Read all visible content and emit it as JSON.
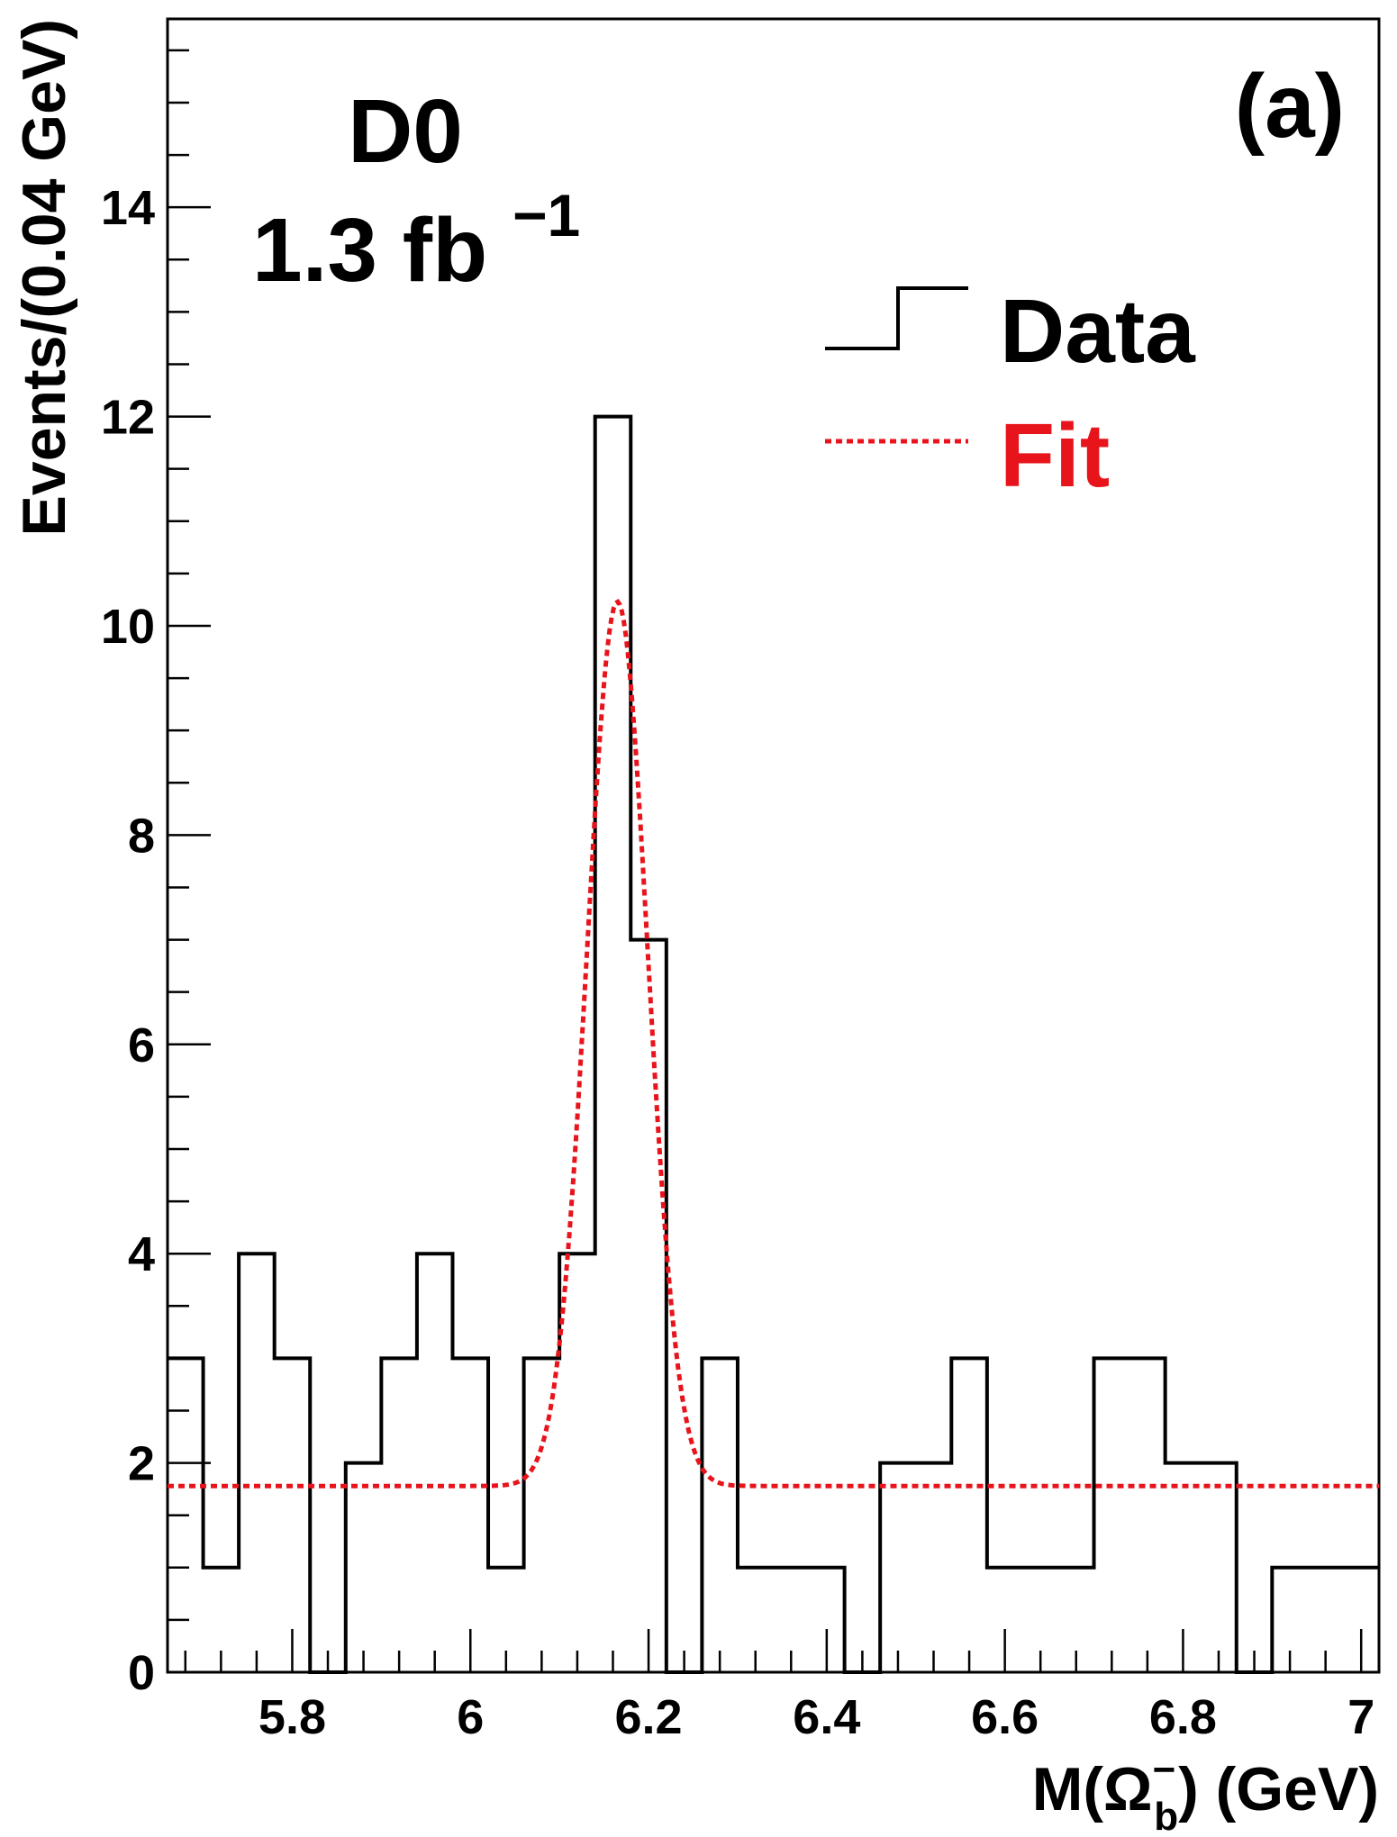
{
  "chart_data": {
    "type": "histogram",
    "title": "",
    "panel_label": "(a)",
    "experiment": "D0",
    "luminosity": "1.3 fb",
    "luminosity_exponent": "−1",
    "xlabel": {
      "prefix": "M(",
      "symbol": "Ω",
      "superscript": "−",
      "subscript": "b",
      "suffix": ") (GeV)"
    },
    "ylabel": "Events/(0.04 GeV)",
    "xlim": [
      5.66,
      7.02
    ],
    "ylim": [
      0,
      15.8
    ],
    "bin_width": 0.04,
    "x_ticks": [
      5.8,
      6.0,
      6.2,
      6.4,
      6.6,
      6.8,
      7.0
    ],
    "x_tick_labels": [
      "5.8",
      "6",
      "6.2",
      "6.4",
      "6.6",
      "6.8",
      "7"
    ],
    "y_ticks": [
      0,
      2,
      4,
      6,
      8,
      10,
      12,
      14
    ],
    "y_tick_labels": [
      "0",
      "2",
      "4",
      "6",
      "8",
      "10",
      "12",
      "14"
    ],
    "bin_edges": [
      5.66,
      5.7,
      5.74,
      5.78,
      5.82,
      5.86,
      5.9,
      5.94,
      5.98,
      6.02,
      6.06,
      6.1,
      6.14,
      6.18,
      6.22,
      6.26,
      6.3,
      6.34,
      6.38,
      6.42,
      6.46,
      6.5,
      6.54,
      6.58,
      6.62,
      6.66,
      6.7,
      6.74,
      6.78,
      6.82,
      6.86,
      6.9,
      6.94,
      6.98,
      7.02
    ],
    "counts": [
      3,
      1,
      4,
      3,
      0,
      2,
      3,
      4,
      3,
      1,
      3,
      4,
      12,
      7,
      0,
      3,
      1,
      1,
      1,
      0,
      2,
      2,
      3,
      1,
      1,
      1,
      3,
      3,
      2,
      2,
      0,
      1,
      1,
      1
    ],
    "fit": {
      "background": 1.78,
      "amplitude": 8.45,
      "mean": 6.165,
      "sigma": 0.034
    },
    "legend": [
      {
        "label": "Data",
        "color": "#000000",
        "style": "step"
      },
      {
        "label": "Fit",
        "color": "#e8141c",
        "style": "dotted"
      }
    ],
    "legend_position": "top-right",
    "colors": {
      "data": "#000000",
      "fit": "#e8141c"
    }
  }
}
